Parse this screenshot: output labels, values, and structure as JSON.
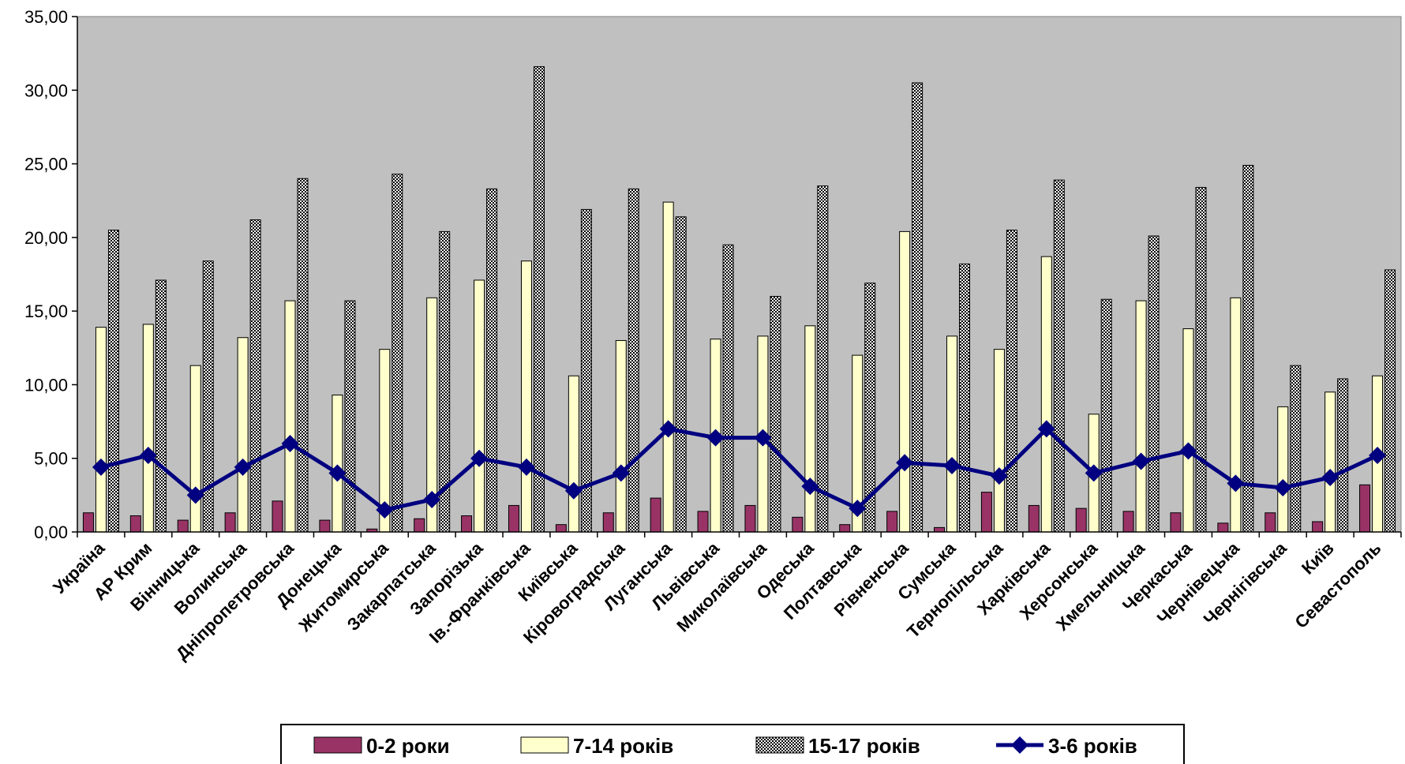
{
  "chart_data": {
    "type": "bar",
    "categories": [
      "Україна",
      "АР Крим",
      "Вінницька",
      "Волинська",
      "Дніпропетровська",
      "Донецька",
      "Житомирська",
      "Закарпатська",
      "Запорізька",
      "Ів.-Франківська",
      "Київська",
      "Кіровоградська",
      "Луганська",
      "Львівська",
      "Миколаївська",
      "Одеська",
      "Полтавська",
      "Рівненська",
      "Сумська",
      "Тернопільська",
      "Харківська",
      "Херсонська",
      "Хмельницька",
      "Черкаська",
      "Чернівецька",
      "Чернігівська",
      "Київ",
      "Севастополь"
    ],
    "series": [
      {
        "name": "0-2 роки",
        "kind": "bar",
        "color": "#993366",
        "values": [
          1.3,
          1.1,
          0.8,
          1.3,
          2.1,
          0.8,
          0.2,
          0.9,
          1.1,
          1.8,
          0.5,
          1.3,
          2.3,
          1.4,
          1.8,
          1.0,
          0.5,
          1.4,
          0.3,
          2.7,
          1.8,
          1.6,
          1.4,
          1.3,
          0.6,
          1.3,
          0.7,
          3.2
        ]
      },
      {
        "name": "7-14 років",
        "kind": "bar",
        "color": "#ffffcc",
        "values": [
          13.9,
          14.1,
          11.3,
          13.2,
          15.7,
          9.3,
          12.4,
          15.9,
          17.1,
          18.4,
          10.6,
          13.0,
          22.4,
          13.1,
          13.3,
          14.0,
          12.0,
          20.4,
          13.3,
          12.4,
          18.7,
          8.0,
          15.7,
          13.8,
          15.9,
          8.5,
          9.5,
          10.6
        ]
      },
      {
        "name": "15-17 років",
        "kind": "bar",
        "pattern": "checker",
        "values": [
          20.5,
          17.1,
          18.4,
          21.2,
          24.0,
          15.7,
          24.3,
          20.4,
          23.3,
          31.6,
          21.9,
          23.3,
          21.4,
          19.5,
          16.0,
          23.5,
          16.9,
          30.5,
          18.2,
          20.5,
          23.9,
          15.8,
          20.1,
          23.4,
          24.9,
          11.3,
          10.4,
          17.8
        ]
      },
      {
        "name": "3-6 років",
        "kind": "line",
        "color": "#000080",
        "values": [
          4.4,
          5.2,
          2.5,
          4.4,
          6.0,
          4.0,
          1.5,
          2.2,
          5.0,
          4.4,
          2.8,
          4.0,
          7.0,
          6.4,
          6.4,
          3.1,
          1.6,
          4.7,
          4.5,
          3.8,
          7.0,
          4.0,
          4.8,
          5.5,
          3.3,
          3.0,
          3.7,
          5.2
        ]
      }
    ],
    "legend_order": [
      "0-2 роки",
      "7-14 років",
      "15-17 років",
      "3-6 років"
    ],
    "y_ticks": [
      "0,00",
      "5,00",
      "10,00",
      "15,00",
      "20,00",
      "25,00",
      "30,00",
      "35,00"
    ],
    "ylim": [
      0,
      35
    ],
    "ystep": 5,
    "xlabel": "",
    "ylabel": "",
    "title": "",
    "plot_background": "#c0c0c0",
    "legend_position": "bottom"
  }
}
